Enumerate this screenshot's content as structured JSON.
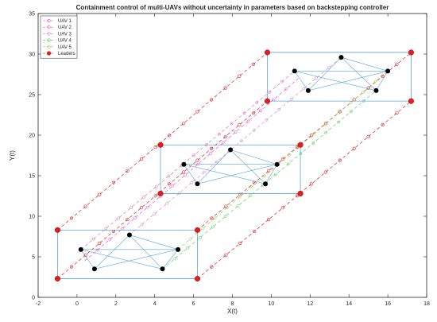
{
  "chart_data": {
    "type": "line",
    "title": "Containment control of multi-UAVs without uncertainty in parameters based on backstepping controller",
    "xlabel": "X(t)",
    "ylabel": "Y(t)",
    "xlim": [
      -2,
      18
    ],
    "ylim": [
      0,
      35
    ],
    "xticks": [
      "-2",
      "0",
      "2",
      "4",
      "6",
      "8",
      "10",
      "12",
      "14",
      "16",
      "18"
    ],
    "yticks": [
      "0",
      "5",
      "10",
      "15",
      "20",
      "25",
      "30",
      "35"
    ],
    "grid": false,
    "legend_position": "top-left",
    "legend": [
      {
        "label": "UAV 1",
        "color": "#e040e0",
        "marker": "open-circle"
      },
      {
        "label": "UAV 2",
        "color": "#e060a0",
        "marker": "open-circle"
      },
      {
        "label": "UAV 3",
        "color": "#d080d0",
        "marker": "open-circle"
      },
      {
        "label": "UAV 4",
        "color": "#40d040",
        "marker": "open-circle"
      },
      {
        "label": "UAV 5",
        "color": "#8cd04a",
        "marker": "open-circle"
      },
      {
        "label": "Leaders",
        "color": "#e02020",
        "marker": "filled-circle"
      }
    ],
    "leader_paths": [
      {
        "from": [
          -1.0,
          2.3
        ],
        "to": [
          9.8,
          24.2
        ]
      },
      {
        "from": [
          -1.0,
          8.3
        ],
        "to": [
          9.8,
          30.2
        ]
      },
      {
        "from": [
          6.2,
          2.3
        ],
        "to": [
          17.2,
          24.2
        ]
      },
      {
        "from": [
          6.2,
          8.3
        ],
        "to": [
          17.2,
          30.2
        ]
      }
    ],
    "leader_positions": [
      [
        [
          -1.0,
          2.3
        ],
        [
          6.2,
          2.3
        ],
        [
          6.2,
          8.3
        ],
        [
          -1.0,
          8.3
        ]
      ],
      [
        [
          4.3,
          12.8
        ],
        [
          11.5,
          12.8
        ],
        [
          11.5,
          18.8
        ],
        [
          4.3,
          18.8
        ]
      ],
      [
        [
          9.8,
          24.2
        ],
        [
          17.2,
          24.2
        ],
        [
          17.2,
          30.2
        ],
        [
          9.8,
          30.2
        ]
      ]
    ],
    "uav_paths": [
      {
        "name": "UAV 1",
        "color": "#e040e0",
        "from": [
          0.4,
          4.5
        ],
        "to": [
          11.4,
          27.0
        ]
      },
      {
        "name": "UAV 2",
        "color": "#e060a0",
        "from": [
          0.2,
          5.9
        ],
        "to": [
          11.2,
          27.9
        ]
      },
      {
        "name": "UAV 3",
        "color": "#d080d0",
        "from": [
          2.7,
          7.7
        ],
        "to": [
          13.6,
          29.6
        ]
      },
      {
        "name": "UAV 4",
        "color": "#40d040",
        "from": [
          4.4,
          3.5
        ],
        "to": [
          15.4,
          25.5
        ]
      },
      {
        "name": "UAV 5",
        "color": "#8cd04a",
        "from": [
          5.2,
          5.9
        ],
        "to": [
          16.0,
          27.9
        ]
      }
    ],
    "formations": [
      [
        [
          0.2,
          5.9
        ],
        [
          0.9,
          3.5
        ],
        [
          2.7,
          7.7
        ],
        [
          4.4,
          3.5
        ],
        [
          5.2,
          5.9
        ]
      ],
      [
        [
          5.5,
          16.4
        ],
        [
          6.2,
          14.0
        ],
        [
          7.9,
          18.2
        ],
        [
          9.7,
          14.0
        ],
        [
          10.3,
          16.4
        ]
      ],
      [
        [
          11.2,
          27.9
        ],
        [
          11.9,
          25.5
        ],
        [
          13.6,
          29.6
        ],
        [
          15.4,
          25.5
        ],
        [
          16.0,
          27.9
        ]
      ]
    ]
  }
}
